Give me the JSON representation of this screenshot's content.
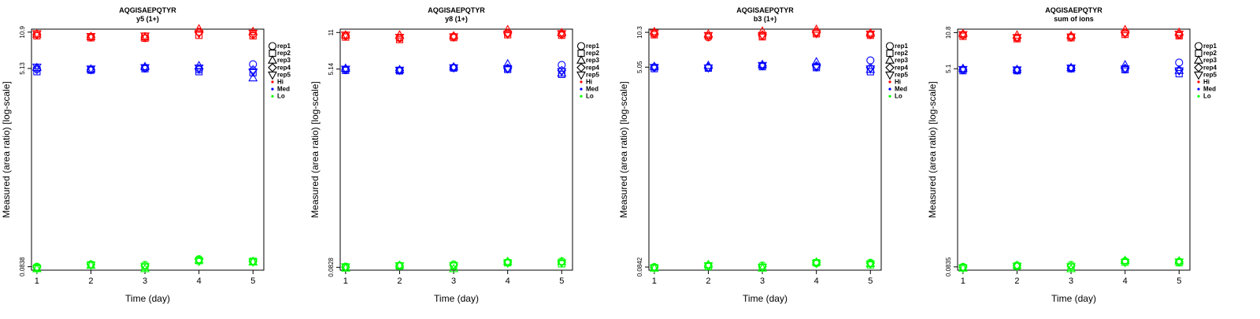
{
  "legend": {
    "entries": [
      {
        "label": "rep1",
        "symbol": "circle",
        "color": "#000000"
      },
      {
        "label": "rep2",
        "symbol": "square",
        "color": "#000000"
      },
      {
        "label": "rep3",
        "symbol": "triangle-up",
        "color": "#000000"
      },
      {
        "label": "rep4",
        "symbol": "diamond",
        "color": "#000000"
      },
      {
        "label": "rep5",
        "symbol": "triangle-down",
        "color": "#000000"
      },
      {
        "label": "Hi",
        "symbol": "dot",
        "color": "#ff0000"
      },
      {
        "label": "Med",
        "symbol": "dot",
        "color": "#0000ff"
      },
      {
        "label": "Lo",
        "symbol": "dot",
        "color": "#00ff00"
      }
    ]
  },
  "colors": {
    "Hi": "#ff0000",
    "Med": "#0000ff",
    "Lo": "#00ff00"
  },
  "chart_data": [
    {
      "type": "scatter",
      "title": "AQGISAEPQTYR",
      "subtitle": "y5 (1+)",
      "xlabel": "Time (day)",
      "ylabel": "Measured (area ratio) [log-scale]",
      "yscale": "log",
      "x": [
        1,
        2,
        3,
        4,
        5
      ],
      "xlim": [
        0.9,
        5.2
      ],
      "ylim": [
        0.078,
        11.6
      ],
      "yticks": [
        {
          "value": 0.0838,
          "label": "0.0838"
        },
        {
          "value": 5.13,
          "label": "5.13"
        },
        {
          "value": 10.9,
          "label": "10.9"
        }
      ],
      "replicates": [
        "rep1",
        "rep2",
        "rep3",
        "rep4",
        "rep5"
      ],
      "groups": [
        {
          "name": "Hi",
          "values": [
            [
              10.5,
              10.1,
              10.4,
              10.3,
              10.6
            ],
            [
              9.9,
              9.7,
              9.9,
              9.8,
              10.0
            ],
            [
              10.0,
              9.6,
              9.8,
              9.7,
              10.1
            ],
            [
              11.0,
              10.2,
              11.6,
              10.8,
              10.6
            ],
            [
              10.5,
              10.1,
              11.0,
              10.3,
              10.7
            ]
          ]
        },
        {
          "name": "Med",
          "values": [
            [
              5.13,
              4.8,
              5.2,
              5.0,
              5.3
            ],
            [
              5.0,
              4.95,
              5.05,
              4.98,
              5.1
            ],
            [
              5.2,
              5.1,
              5.3,
              5.15,
              5.25
            ],
            [
              5.0,
              4.8,
              5.4,
              5.1,
              5.2
            ],
            [
              5.6,
              4.7,
              4.2,
              5.0,
              4.8
            ]
          ]
        },
        {
          "name": "Lo",
          "values": [
            [
              0.0838,
              0.082,
              0.08,
              0.083,
              0.081
            ],
            [
              0.088,
              0.087,
              0.086,
              0.088,
              0.087
            ],
            [
              0.087,
              0.083,
              0.08,
              0.085,
              0.084
            ],
            [
              0.098,
              0.095,
              0.096,
              0.097,
              0.094
            ],
            [
              0.093,
              0.094,
              0.092,
              0.094,
              0.093
            ]
          ]
        }
      ]
    },
    {
      "type": "scatter",
      "title": "AQGISAEPQTYR",
      "subtitle": "y8 (1+)",
      "xlabel": "Time (day)",
      "ylabel": "Measured (area ratio) [log-scale]",
      "yscale": "log",
      "x": [
        1,
        2,
        3,
        4,
        5
      ],
      "xlim": [
        0.9,
        5.2
      ],
      "ylim": [
        0.078,
        11.8
      ],
      "yticks": [
        {
          "value": 0.0828,
          "label": "0.0828"
        },
        {
          "value": 5.14,
          "label": "5.14"
        },
        {
          "value": 11.0,
          "label": "11"
        }
      ],
      "replicates": [
        "rep1",
        "rep2",
        "rep3",
        "rep4",
        "rep5"
      ],
      "groups": [
        {
          "name": "Hi",
          "values": [
            [
              10.3,
              10.0,
              10.4,
              10.2,
              10.5
            ],
            [
              9.8,
              9.5,
              10.4,
              9.8,
              10.0
            ],
            [
              10.1,
              9.9,
              10.2,
              10.0,
              10.1
            ],
            [
              10.8,
              10.5,
              11.6,
              10.9,
              10.7
            ],
            [
              10.7,
              10.4,
              10.9,
              10.5,
              10.8
            ]
          ]
        },
        {
          "name": "Med",
          "values": [
            [
              5.1,
              5.0,
              5.2,
              5.05,
              5.15
            ],
            [
              5.0,
              4.95,
              5.05,
              5.0,
              5.05
            ],
            [
              5.3,
              5.25,
              5.35,
              5.28,
              5.3
            ],
            [
              5.2,
              5.1,
              5.7,
              5.25,
              5.2
            ],
            [
              5.6,
              4.6,
              4.7,
              5.0,
              4.9
            ]
          ]
        },
        {
          "name": "Lo",
          "values": [
            [
              0.084,
              0.082,
              0.081,
              0.083,
              0.084
            ],
            [
              0.086,
              0.085,
              0.086,
              0.085,
              0.086
            ],
            [
              0.088,
              0.085,
              0.08,
              0.087,
              0.086
            ],
            [
              0.092,
              0.091,
              0.093,
              0.092,
              0.091
            ],
            [
              0.094,
              0.089,
              0.093,
              0.092,
              0.091
            ]
          ]
        }
      ]
    },
    {
      "type": "scatter",
      "title": "AQGISAEPQTYR",
      "subtitle": "b3 (1+)",
      "xlabel": "Time (day)",
      "ylabel": "Measured (area ratio) [log-scale]",
      "yscale": "log",
      "x": [
        1,
        2,
        3,
        4,
        5
      ],
      "xlim": [
        0.9,
        5.2
      ],
      "ylim": [
        0.079,
        11.0
      ],
      "yticks": [
        {
          "value": 0.0842,
          "label": "0.0842"
        },
        {
          "value": 5.05,
          "label": "5.05"
        },
        {
          "value": 10.3,
          "label": "10.3"
        }
      ],
      "replicates": [
        "rep1",
        "rep2",
        "rep3",
        "rep4",
        "rep5"
      ],
      "groups": [
        {
          "name": "Hi",
          "values": [
            [
              10.0,
              9.8,
              10.4,
              10.1,
              10.2
            ],
            [
              9.3,
              9.6,
              9.9,
              9.5,
              9.7
            ],
            [
              9.6,
              9.4,
              10.5,
              9.8,
              9.7
            ],
            [
              10.2,
              10.0,
              10.9,
              10.4,
              10.1
            ],
            [
              9.9,
              9.7,
              10.1,
              9.8,
              10.0
            ]
          ]
        },
        {
          "name": "Med",
          "values": [
            [
              5.05,
              4.9,
              5.1,
              5.0,
              5.05
            ],
            [
              5.0,
              4.95,
              5.2,
              5.05,
              5.0
            ],
            [
              5.2,
              5.1,
              5.3,
              5.2,
              5.25
            ],
            [
              5.1,
              5.0,
              5.6,
              5.2,
              5.1
            ],
            [
              5.8,
              4.6,
              4.8,
              5.0,
              4.9
            ]
          ]
        },
        {
          "name": "Lo",
          "values": [
            [
              0.0842,
              0.083,
              0.082,
              0.084,
              0.083
            ],
            [
              0.087,
              0.085,
              0.088,
              0.086,
              0.087
            ],
            [
              0.087,
              0.083,
              0.082,
              0.085,
              0.084
            ],
            [
              0.091,
              0.092,
              0.093,
              0.092,
              0.091
            ],
            [
              0.092,
              0.088,
              0.09,
              0.091,
              0.09
            ]
          ]
        }
      ]
    },
    {
      "type": "scatter",
      "title": "AQGISAEPQTYR",
      "subtitle": "sum of ions",
      "xlabel": "Time (day)",
      "ylabel": "Measured (area ratio) [log-scale]",
      "yscale": "log",
      "x": [
        1,
        2,
        3,
        4,
        5
      ],
      "xlim": [
        0.9,
        5.2
      ],
      "ylim": [
        0.078,
        11.6
      ],
      "yticks": [
        {
          "value": 0.0835,
          "label": "0.0835"
        },
        {
          "value": 5.1,
          "label": "5.1"
        },
        {
          "value": 10.8,
          "label": "10.8"
        }
      ],
      "replicates": [
        "rep1",
        "rep2",
        "rep3",
        "rep4",
        "rep5"
      ],
      "groups": [
        {
          "name": "Hi",
          "values": [
            [
              10.3,
              10.0,
              10.5,
              10.2,
              10.4
            ],
            [
              9.7,
              9.5,
              10.2,
              9.7,
              9.8
            ],
            [
              9.9,
              9.7,
              10.1,
              9.8,
              9.9
            ],
            [
              10.7,
              10.4,
              11.4,
              10.8,
              10.6
            ],
            [
              10.3,
              10.1,
              10.8,
              10.4,
              10.5
            ]
          ]
        },
        {
          "name": "Med",
          "values": [
            [
              5.0,
              4.9,
              5.1,
              5.0,
              5.05
            ],
            [
              4.95,
              4.9,
              5.0,
              4.95,
              5.0
            ],
            [
              5.15,
              5.1,
              5.2,
              5.15,
              5.2
            ],
            [
              5.1,
              5.0,
              5.5,
              5.15,
              5.1
            ],
            [
              5.8,
              4.6,
              4.9,
              5.0,
              4.9
            ]
          ]
        },
        {
          "name": "Lo",
          "values": [
            [
              0.0835,
              0.082,
              0.081,
              0.083,
              0.082
            ],
            [
              0.086,
              0.085,
              0.086,
              0.086,
              0.085
            ],
            [
              0.087,
              0.083,
              0.08,
              0.085,
              0.084
            ],
            [
              0.094,
              0.092,
              0.095,
              0.093,
              0.092
            ],
            [
              0.093,
              0.091,
              0.094,
              0.092,
              0.093
            ]
          ]
        }
      ]
    }
  ]
}
